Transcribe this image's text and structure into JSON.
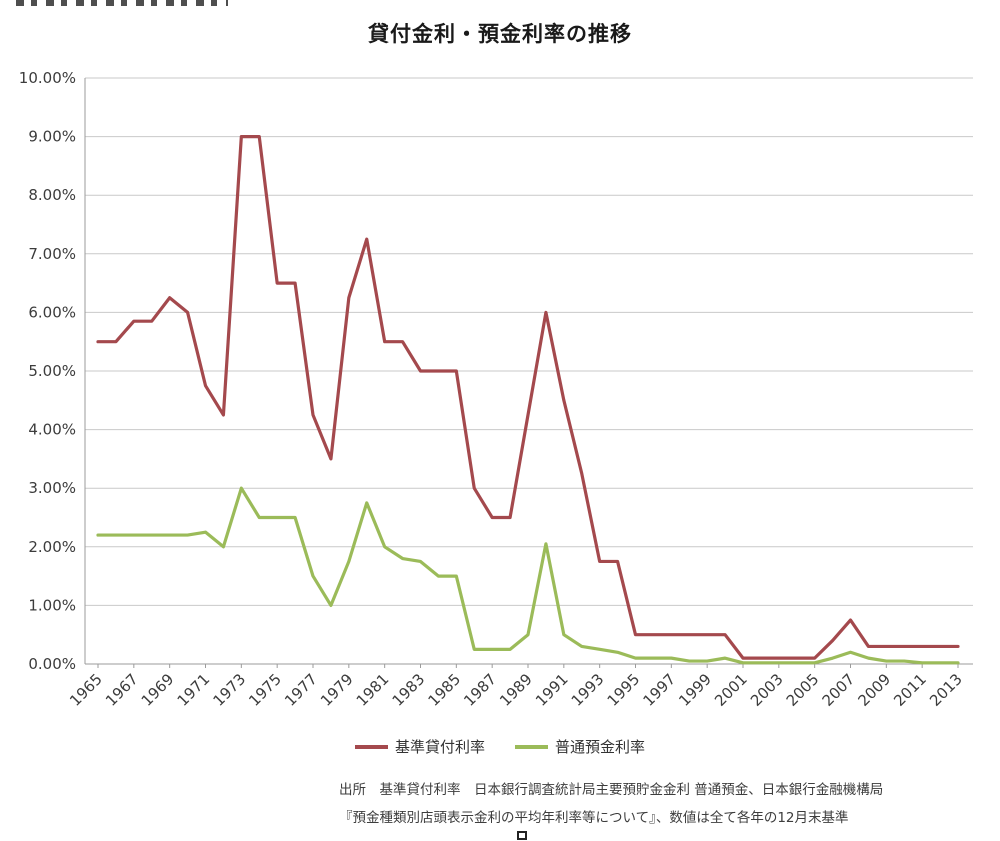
{
  "title": "貸付金利・預金利率の推移",
  "colors": {
    "lending_rate_line": "#A4494D",
    "deposit_rate_line": "#9BBB59",
    "gridline": "#c9c9c9",
    "axis": "#9b9b9b",
    "text": "#3c3c3c"
  },
  "chart_data": {
    "type": "line",
    "title": "貸付金利・預金利率の推移",
    "xlabel": "",
    "ylabel": "",
    "ylim": [
      0,
      10
    ],
    "grid": true,
    "legend_position": "bottom",
    "x": [
      1965,
      1966,
      1967,
      1968,
      1969,
      1970,
      1971,
      1972,
      1973,
      1974,
      1975,
      1976,
      1977,
      1978,
      1979,
      1980,
      1981,
      1982,
      1983,
      1984,
      1985,
      1986,
      1987,
      1988,
      1989,
      1990,
      1991,
      1992,
      1993,
      1994,
      1995,
      1996,
      1997,
      1998,
      1999,
      2000,
      2001,
      2002,
      2003,
      2004,
      2005,
      2006,
      2007,
      2008,
      2009,
      2010,
      2011,
      2012,
      2013
    ],
    "x_tick_labels": [
      "1965",
      "1967",
      "1969",
      "1971",
      "1973",
      "1975",
      "1977",
      "1979",
      "1981",
      "1983",
      "1985",
      "1987",
      "1989",
      "1991",
      "1993",
      "1995",
      "1997",
      "1999",
      "2001",
      "2003",
      "2005",
      "2007",
      "2009",
      "2011",
      "2013"
    ],
    "y_tick_labels": [
      "0.00%",
      "1.00%",
      "2.00%",
      "3.00%",
      "4.00%",
      "5.00%",
      "6.00%",
      "7.00%",
      "8.00%",
      "9.00%",
      "10.00%"
    ],
    "series": [
      {
        "name": "基準貸付利率",
        "color": "#A4494D",
        "values": [
          5.5,
          5.5,
          5.85,
          5.85,
          6.25,
          6.0,
          4.75,
          4.25,
          9.0,
          9.0,
          6.5,
          6.5,
          4.25,
          3.5,
          6.25,
          7.25,
          5.5,
          5.5,
          5.0,
          5.0,
          5.0,
          3.0,
          2.5,
          2.5,
          4.25,
          6.0,
          4.5,
          3.25,
          1.75,
          1.75,
          0.5,
          0.5,
          0.5,
          0.5,
          0.5,
          0.5,
          0.1,
          0.1,
          0.1,
          0.1,
          0.1,
          0.4,
          0.75,
          0.3,
          0.3,
          0.3,
          0.3,
          0.3,
          0.3
        ]
      },
      {
        "name": "普通預金利率",
        "color": "#9BBB59",
        "values": [
          2.2,
          2.2,
          2.2,
          2.2,
          2.2,
          2.2,
          2.25,
          2.0,
          3.0,
          2.5,
          2.5,
          2.5,
          1.5,
          1.0,
          1.75,
          2.75,
          2.0,
          1.8,
          1.75,
          1.5,
          1.5,
          0.25,
          0.25,
          0.25,
          0.5,
          2.05,
          0.5,
          0.3,
          0.25,
          0.2,
          0.1,
          0.1,
          0.1,
          0.05,
          0.05,
          0.1,
          0.02,
          0.02,
          0.02,
          0.02,
          0.02,
          0.1,
          0.2,
          0.1,
          0.05,
          0.05,
          0.02,
          0.02,
          0.02
        ]
      }
    ]
  },
  "legend": {
    "items": [
      {
        "label": "基準貸付利率"
      },
      {
        "label": "普通預金利率"
      }
    ]
  },
  "source": {
    "line1": "出所　基準貸付利率　日本銀行調査統計局主要預貯金金利 普通預金、日本銀行金融機構局",
    "line2": "『預金種類別店頭表示金利の平均年利率等について』、数値は全て各年の12月末基準"
  }
}
